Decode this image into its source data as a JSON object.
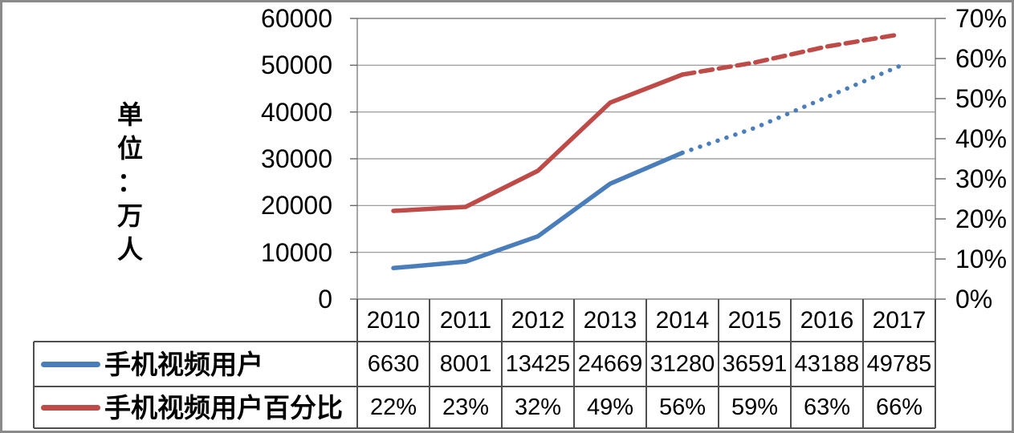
{
  "axis_title": "单位：万人",
  "left_axis": {
    "tick_labels": [
      "60000",
      "50000",
      "40000",
      "30000",
      "20000",
      "10000",
      "0"
    ]
  },
  "right_axis": {
    "tick_labels": [
      "70%",
      "60%",
      "50%",
      "40%",
      "30%",
      "20%",
      "10%",
      "0%"
    ]
  },
  "chart_data": {
    "type": "line",
    "title": "",
    "categories": [
      "2010",
      "2011",
      "2012",
      "2013",
      "2014",
      "2015",
      "2016",
      "2017"
    ],
    "left_axis_label": "单位：万人",
    "left_ylim": [
      0,
      60000
    ],
    "right_ylim_percent": [
      0,
      70
    ],
    "grid": true,
    "legend_position": "bottom-table",
    "series": [
      {
        "name": "手机视频用户",
        "axis": "left",
        "color": "#4A7EBB",
        "values": [
          6630,
          8001,
          13425,
          24669,
          31280,
          36591,
          43188,
          49785
        ],
        "solid_through_index": 4,
        "forecast_style": "dotted"
      },
      {
        "name": "手机视频用户百分比",
        "axis": "right",
        "unit": "%",
        "color": "#BE4B48",
        "values": [
          22,
          23,
          32,
          49,
          56,
          59,
          63,
          66
        ],
        "solid_through_index": 4,
        "forecast_style": "dashed"
      }
    ]
  },
  "table": {
    "year_header": [
      "2010",
      "2011",
      "2012",
      "2013",
      "2014",
      "2015",
      "2016",
      "2017"
    ],
    "rows": [
      {
        "label": "手机视频用户",
        "swatch_color": "#4A7EBB",
        "cells": [
          "6630",
          "8001",
          "13425",
          "24669",
          "31280",
          "36591",
          "43188",
          "49785"
        ]
      },
      {
        "label": "手机视频用户百分比",
        "swatch_color": "#BE4B48",
        "cells": [
          "22%",
          "23%",
          "32%",
          "49%",
          "56%",
          "59%",
          "63%",
          "66%"
        ]
      }
    ]
  },
  "colors": {
    "blue": "#4A7EBB",
    "red": "#BE4B48",
    "gridline": "#909090",
    "plot_border": "#808080",
    "table_border": "#4F4F4F",
    "tick": "#666666",
    "frame": "#8A8A8A",
    "text": "#000000"
  }
}
